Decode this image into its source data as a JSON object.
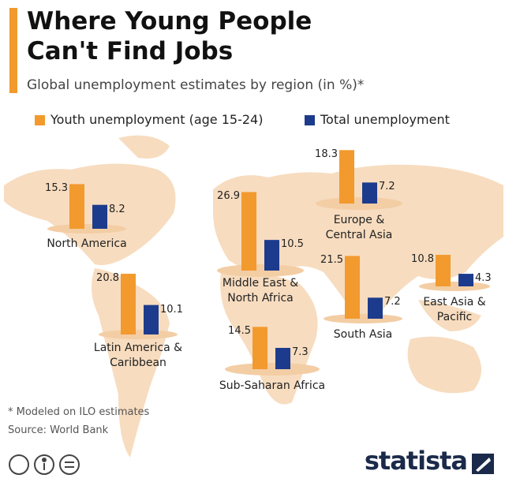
{
  "chart_data": {
    "type": "bar",
    "title": "Where Young People Can't Find Jobs",
    "subtitle": "Global unemployment estimates by region (in %)*",
    "categories": [
      "North America",
      "Latin America & Caribbean",
      "Middle East & North Africa",
      "Sub-Saharan Africa",
      "Europe & Central Asia",
      "South Asia",
      "East Asia & Pacific"
    ],
    "series": [
      {
        "name": "Youth unemployment (age 15-24)",
        "color": "#f29a2e",
        "values": [
          15.3,
          20.8,
          26.9,
          14.5,
          18.3,
          21.5,
          10.8
        ]
      },
      {
        "name": "Total unemployment",
        "color": "#1c3b8c",
        "values": [
          8.2,
          10.1,
          10.5,
          7.3,
          7.2,
          7.2,
          4.3
        ]
      }
    ]
  },
  "footer": {
    "note": "* Modeled on ILO estimates",
    "source": "Source: World Bank",
    "brand": "statista"
  }
}
